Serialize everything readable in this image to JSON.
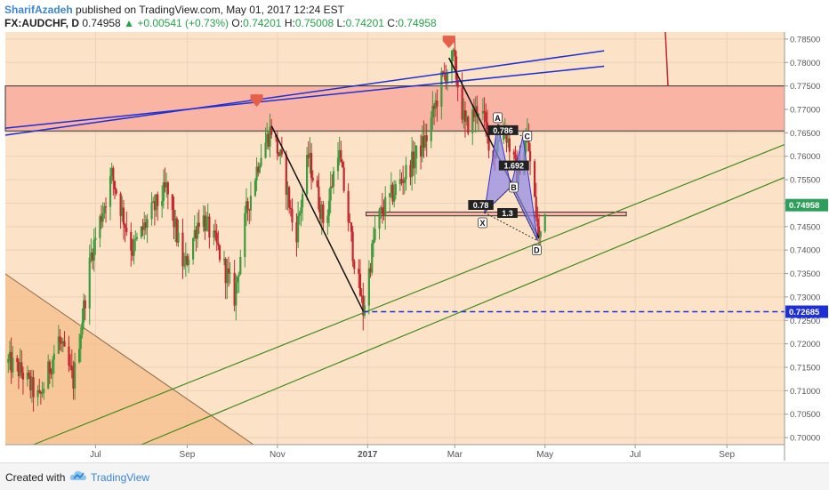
{
  "header": {
    "author": "SharifAzadeh",
    "published": "published on TradingView.com, May 01, 2017 12:24 EST",
    "symbol": "FX:AUDCHF, D",
    "last": "0.74958",
    "change": "+0.00541 (+0.73%)",
    "o_label": "O:",
    "o_value": "0.74201",
    "h_label": "H:",
    "h_value": "0.75008",
    "l_label": "L:",
    "l_value": "0.74201",
    "c_label": "C:",
    "c_value": "0.74958"
  },
  "footer": {
    "created_with": "Created with",
    "brand": "TradingView"
  },
  "colors": {
    "background": "#fce3c8",
    "bull_candle": "#3d9a3d",
    "bear_candle": "#c4262e",
    "resistance_zone": "#f9b4a4",
    "channel_blue": "#1f2fd6",
    "trend_green": "#3e8a1a",
    "dashed_level": "#1f2fd6",
    "price_tag": "#2e9e5b",
    "level_tag": "#1f2fd6",
    "pattern_fill": "#8f88e8"
  },
  "chart_data": {
    "type": "candlestick",
    "symbol": "FX:AUDCHF",
    "timeframe": "D",
    "x_ticks": [
      "Jul",
      "Sep",
      "Nov",
      "2017",
      "Mar",
      "May",
      "Jul",
      "Sep"
    ],
    "y_ticks": [
      "0.78500",
      "0.78000",
      "0.77500",
      "0.77000",
      "0.76500",
      "0.76000",
      "0.75500",
      "0.75000",
      "0.74500",
      "0.74000",
      "0.73500",
      "0.73000",
      "0.72500",
      "0.72000",
      "0.71500",
      "0.71000",
      "0.70500",
      "0.70000"
    ],
    "ylim": [
      0.6985,
      0.7865
    ],
    "xlim": [
      "2016-05-01",
      "2017-10-10"
    ],
    "current_price": "0.74958",
    "horizontal_level": "0.72685",
    "resistance_zone": [
      0.7654,
      0.775
    ],
    "support_zone": [
      0.7473,
      0.7481
    ],
    "pattern_labels": [
      "X",
      "A",
      "B",
      "C",
      "D"
    ],
    "ratio_labels": [
      "0.78",
      "0.786",
      "1.692",
      "1.3"
    ],
    "arrows": [
      {
        "date": "2016-10-18",
        "price": 0.7715
      },
      {
        "date": "2017-02-25",
        "price": 0.784
      }
    ],
    "swing_path": [
      [
        "2016-05-03",
        0.716
      ],
      [
        "2016-05-12",
        0.714
      ],
      [
        "2016-05-24",
        0.708
      ],
      [
        "2016-06-06",
        0.721
      ],
      [
        "2016-06-16",
        0.712
      ],
      [
        "2016-06-28",
        0.739
      ],
      [
        "2016-07-12",
        0.756
      ],
      [
        "2016-07-26",
        0.74
      ],
      [
        "2016-08-08",
        0.748
      ],
      [
        "2016-08-18",
        0.753
      ],
      [
        "2016-08-30",
        0.736
      ],
      [
        "2016-09-10",
        0.748
      ],
      [
        "2016-09-22",
        0.74
      ],
      [
        "2016-10-03",
        0.73
      ],
      [
        "2016-10-11",
        0.748
      ],
      [
        "2016-10-20",
        0.76
      ],
      [
        "2016-10-28",
        0.766
      ],
      [
        "2016-11-06",
        0.756
      ],
      [
        "2016-11-13",
        0.742
      ],
      [
        "2016-11-22",
        0.76
      ],
      [
        "2016-12-03",
        0.745
      ],
      [
        "2016-12-12",
        0.762
      ],
      [
        "2016-12-22",
        0.74
      ],
      [
        "2016-12-29",
        0.727
      ],
      [
        "2017-01-07",
        0.746
      ],
      [
        "2017-01-18",
        0.752
      ],
      [
        "2017-01-30",
        0.758
      ],
      [
        "2017-02-10",
        0.764
      ],
      [
        "2017-02-20",
        0.776
      ],
      [
        "2017-02-28",
        0.781
      ],
      [
        "2017-03-08",
        0.766
      ],
      [
        "2017-03-18",
        0.771
      ],
      [
        "2017-03-27",
        0.76
      ],
      [
        "2017-04-03",
        0.767
      ],
      [
        "2017-04-12",
        0.756
      ],
      [
        "2017-04-19",
        0.764
      ],
      [
        "2017-04-27",
        0.742
      ],
      [
        "2017-05-01",
        0.7496
      ]
    ]
  }
}
